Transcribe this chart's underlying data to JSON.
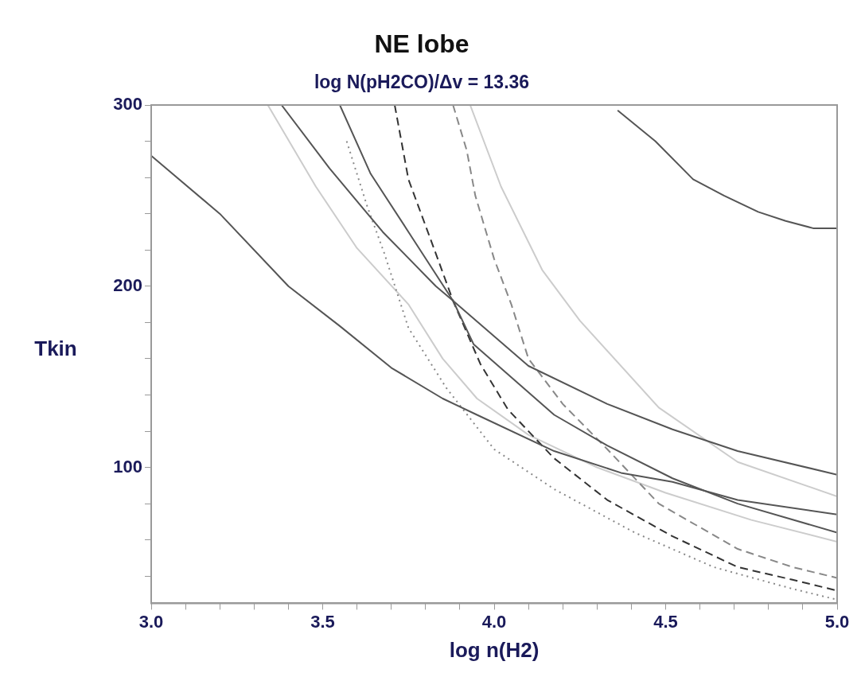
{
  "chart_data": {
    "type": "line",
    "title": "NE lobe",
    "subtitle": "log N(pH2CO)/Δv = 13.36",
    "xlabel": "log n(H2)",
    "ylabel": "Tkin",
    "xlim": [
      3.0,
      5.0
    ],
    "ylim": [
      25,
      300
    ],
    "xticks": [
      {
        "value": 3.0,
        "label": "3.0"
      },
      {
        "value": 3.1,
        "label": null
      },
      {
        "value": 3.2,
        "label": null
      },
      {
        "value": 3.3,
        "label": null
      },
      {
        "value": 3.4,
        "label": null
      },
      {
        "value": 3.5,
        "label": "3.5"
      },
      {
        "value": 3.6,
        "label": null
      },
      {
        "value": 3.7,
        "label": null
      },
      {
        "value": 3.8,
        "label": null
      },
      {
        "value": 3.9,
        "label": null
      },
      {
        "value": 4.0,
        "label": "4.0"
      },
      {
        "value": 4.1,
        "label": null
      },
      {
        "value": 4.2,
        "label": null
      },
      {
        "value": 4.3,
        "label": null
      },
      {
        "value": 4.4,
        "label": null
      },
      {
        "value": 4.5,
        "label": "4.5"
      },
      {
        "value": 4.6,
        "label": null
      },
      {
        "value": 4.7,
        "label": null
      },
      {
        "value": 4.8,
        "label": null
      },
      {
        "value": 4.9,
        "label": null
      },
      {
        "value": 5.0,
        "label": "5.0"
      }
    ],
    "yticks": [
      {
        "value": 40,
        "label": null
      },
      {
        "value": 60,
        "label": null
      },
      {
        "value": 80,
        "label": null
      },
      100,
      {
        "value": 120,
        "label": null
      },
      {
        "value": 140,
        "label": null
      },
      {
        "value": 160,
        "label": null
      },
      {
        "value": 180,
        "label": null
      },
      200,
      {
        "value": 220,
        "label": null
      },
      {
        "value": 240,
        "label": null
      },
      {
        "value": 260,
        "label": null
      },
      {
        "value": 280,
        "label": null
      },
      300
    ],
    "grid": false,
    "legend": false,
    "marker": "none",
    "series": [
      {
        "color": "#555555",
        "line_style": "solid",
        "x": [
          3.0,
          3.2,
          3.4,
          3.55,
          3.7,
          3.85,
          3.95,
          4.175,
          4.37,
          4.52,
          4.71,
          5.0
        ],
        "values": [
          272,
          240,
          200,
          178,
          155,
          138,
          129,
          109,
          97,
          92,
          82,
          74
        ]
      },
      {
        "color": "#555555",
        "line_style": "solid",
        "x": [
          3.38,
          3.52,
          3.675,
          3.83,
          3.88,
          4.1,
          4.33,
          4.52,
          4.71,
          5.0
        ],
        "values": [
          300,
          265,
          230,
          200,
          192,
          156,
          135,
          121,
          109,
          96
        ]
      },
      {
        "color": "#555555",
        "line_style": "solid",
        "x": [
          3.55,
          3.64,
          3.75,
          3.88,
          3.94,
          4.175,
          4.33,
          4.52,
          4.71,
          5.0
        ],
        "values": [
          300,
          262,
          230,
          192,
          168,
          129,
          112,
          94,
          80,
          64
        ]
      },
      {
        "color": "#555555",
        "line_style": "solid",
        "x": [
          4.36,
          4.47,
          4.58,
          4.67,
          4.77,
          4.85,
          4.93,
          5.0
        ],
        "values": [
          297,
          280,
          259,
          250,
          241,
          236,
          232,
          232
        ]
      },
      {
        "color": "#333333",
        "line_style": "dashed",
        "x": [
          3.71,
          3.75,
          3.83,
          3.88,
          3.96,
          4.04,
          4.175,
          4.33,
          4.52,
          4.71,
          4.87,
          5.0
        ],
        "values": [
          300,
          259,
          218,
          192,
          157,
          132,
          105,
          82,
          62,
          45,
          38,
          32
        ]
      },
      {
        "color": "#888888",
        "line_style": "dashed",
        "x": [
          3.88,
          3.92,
          3.945,
          4.0,
          4.05,
          4.1,
          4.2,
          4.33,
          4.48,
          4.71,
          4.87,
          5.0
        ],
        "values": [
          300,
          275,
          250,
          215,
          190,
          160,
          135,
          110,
          80,
          55,
          45,
          39
        ]
      },
      {
        "color": "#888888",
        "line_style": "dotted",
        "x": [
          3.57,
          3.63,
          3.68,
          3.75,
          3.86,
          4.0,
          4.175,
          4.41,
          4.64,
          4.87,
          5.0
        ],
        "values": [
          280,
          244,
          218,
          177,
          144,
          110,
          88,
          64,
          45,
          33,
          27
        ]
      },
      {
        "color": "#cccccc",
        "line_style": "solid",
        "x": [
          3.93,
          4.02,
          4.14,
          4.25,
          4.48,
          4.71,
          5.0
        ],
        "values": [
          300,
          255,
          209,
          181,
          133,
          103,
          84
        ]
      },
      {
        "color": "#cccccc",
        "line_style": "solid",
        "x": [
          3.34,
          3.48,
          3.6,
          3.75,
          3.85,
          3.95,
          4.1,
          4.3,
          4.5,
          4.75,
          5.0
        ],
        "values": [
          300,
          255,
          221,
          190,
          160,
          138,
          118,
          100,
          86,
          71,
          59
        ]
      }
    ]
  }
}
